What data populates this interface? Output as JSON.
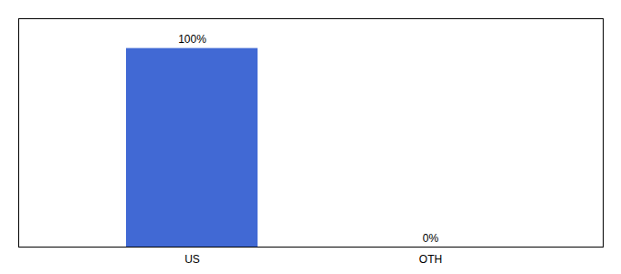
{
  "chart_data": {
    "type": "bar",
    "categories": [
      "US",
      "OTH"
    ],
    "values": [
      100,
      0
    ],
    "value_labels": [
      "100%",
      "0%"
    ],
    "color": "#4169d4",
    "ylim": [
      0,
      115
    ],
    "grid": false,
    "data_labels": true,
    "tick_labels": "x"
  }
}
